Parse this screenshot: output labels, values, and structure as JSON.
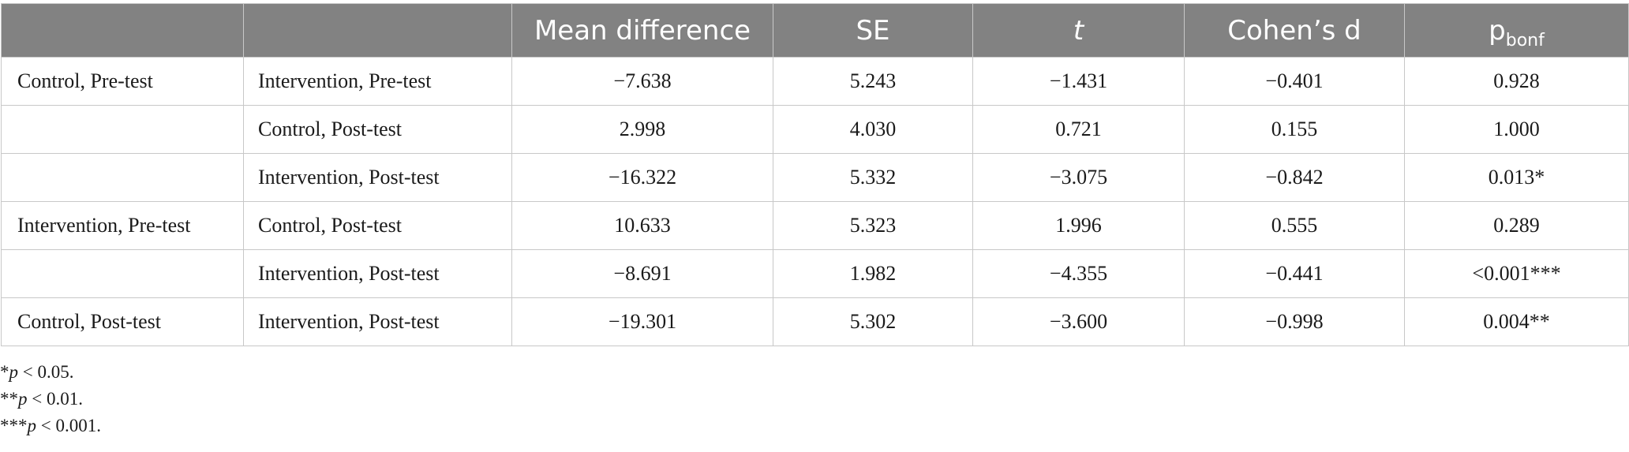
{
  "table": {
    "headers": {
      "col1": "",
      "col2": "",
      "mean_difference": "Mean difference",
      "se": "SE",
      "t": "t",
      "cohens_d": "Cohen’s d",
      "p_main": "p",
      "p_sub": "bonf"
    },
    "rows": [
      {
        "group1": "Control, Pre-test",
        "group2": "Intervention, Pre-test",
        "mean_difference": "−7.638",
        "se": "5.243",
        "t": "−1.431",
        "cohens_d": "−0.401",
        "p": "0.928"
      },
      {
        "group1": "",
        "group2": "Control, Post-test",
        "mean_difference": "2.998",
        "se": "4.030",
        "t": "0.721",
        "cohens_d": "0.155",
        "p": "1.000"
      },
      {
        "group1": "",
        "group2": "Intervention, Post-test",
        "mean_difference": "−16.322",
        "se": "5.332",
        "t": "−3.075",
        "cohens_d": "−0.842",
        "p": "0.013*"
      },
      {
        "group1": "Intervention, Pre-test",
        "group2": "Control, Post-test",
        "mean_difference": "10.633",
        "se": "5.323",
        "t": "1.996",
        "cohens_d": "0.555",
        "p": "0.289"
      },
      {
        "group1": "",
        "group2": "Intervention, Post-test",
        "mean_difference": "−8.691",
        "se": "1.982",
        "t": "−4.355",
        "cohens_d": "−0.441",
        "p": "<0.001***"
      },
      {
        "group1": "Control, Post-test",
        "group2": "Intervention, Post-test",
        "mean_difference": "−19.301",
        "se": "5.302",
        "t": "−3.600",
        "cohens_d": "−0.998",
        "p": "0.004**"
      }
    ]
  },
  "footnotes": [
    {
      "stars": "*",
      "p": "p",
      "rest": " < 0.05."
    },
    {
      "stars": "**",
      "p": "p",
      "rest": " < 0.01."
    },
    {
      "stars": "***",
      "p": "p",
      "rest": " < 0.001."
    }
  ]
}
